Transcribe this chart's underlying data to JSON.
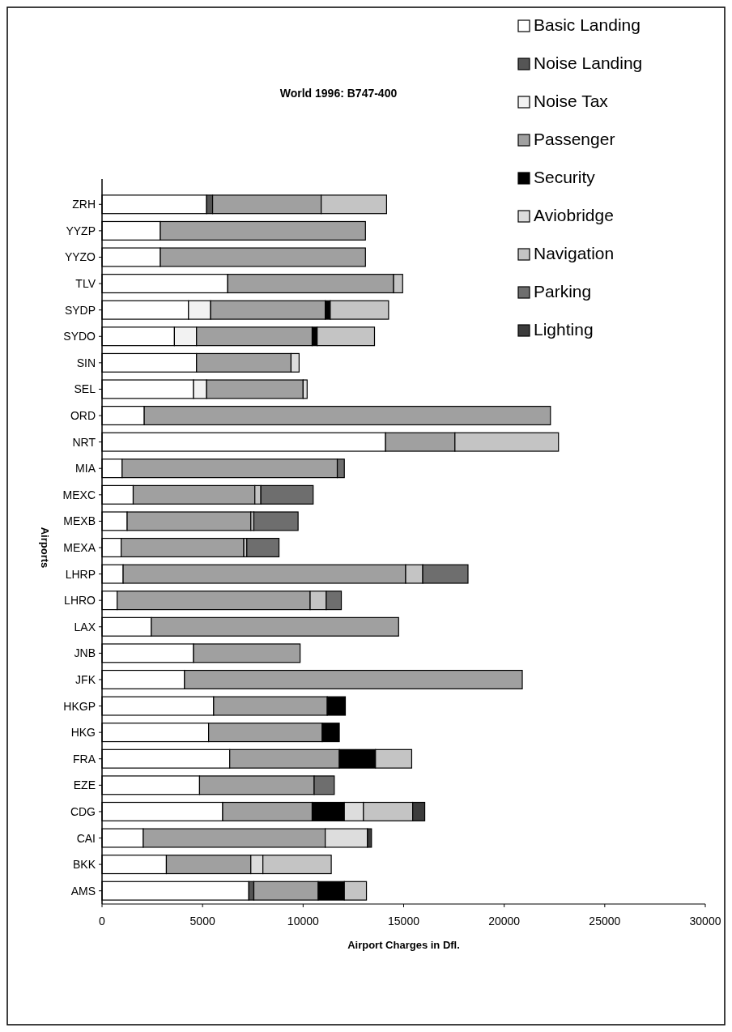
{
  "chart_data": {
    "type": "bar",
    "title": "World 1996: B747-400",
    "xlabel": "Airport Charges in Dfl.",
    "ylabel": "Airports",
    "orientation": "horizontal",
    "stacked": true,
    "legend": "top right",
    "grid": false,
    "categories": [
      "ZRH",
      "YYZP",
      "YYZO",
      "TLV",
      "SYDP",
      "SYDO",
      "SIN",
      "SEL",
      "ORD",
      "NRT",
      "MIA",
      "MEXC",
      "MEXB",
      "MEXA",
      "LHRP",
      "LHRO",
      "LAX",
      "JNB",
      "JFK",
      "HKGP",
      "HKG",
      "FRA",
      "EZE",
      "CDG",
      "CAI",
      "BKK",
      "AMS"
    ],
    "xlim": [
      0,
      30000
    ],
    "xticks": [
      0,
      5000,
      10000,
      15000,
      20000,
      25000,
      30000
    ],
    "series": [
      {
        "name": "Basic Landing",
        "color": "#ffffff",
        "values": [
          5200,
          2900,
          2900,
          6250,
          4300,
          3600,
          4700,
          4550,
          2100,
          14100,
          1000,
          1550,
          1250,
          950,
          1050,
          750,
          2450,
          4550,
          4100,
          5550,
          5300,
          6350,
          4850,
          6000,
          2050,
          3200,
          7300
        ]
      },
      {
        "name": "Noise Landing",
        "color": "#555555",
        "values": [
          300,
          null,
          null,
          null,
          null,
          null,
          null,
          null,
          null,
          null,
          null,
          null,
          null,
          null,
          null,
          null,
          null,
          null,
          null,
          null,
          null,
          null,
          null,
          null,
          null,
          null,
          250
        ]
      },
      {
        "name": "Noise Tax",
        "color": "#f2f2f2",
        "values": [
          null,
          null,
          null,
          null,
          1100,
          1100,
          null,
          650,
          null,
          null,
          null,
          null,
          null,
          null,
          null,
          null,
          null,
          null,
          null,
          null,
          null,
          null,
          null,
          null,
          null,
          null,
          null
        ]
      },
      {
        "name": "Passenger",
        "color": "#a0a0a0",
        "values": [
          5400,
          10200,
          10200,
          8250,
          5700,
          5750,
          4700,
          4800,
          20200,
          3450,
          10700,
          6050,
          6150,
          6100,
          14050,
          9600,
          12300,
          5300,
          16800,
          5650,
          5650,
          5450,
          5700,
          4450,
          9050,
          4200,
          3200
        ]
      },
      {
        "name": "Security",
        "color": "#000000",
        "values": [
          null,
          null,
          null,
          null,
          250,
          250,
          null,
          null,
          null,
          null,
          null,
          null,
          null,
          null,
          null,
          null,
          null,
          null,
          null,
          900,
          850,
          1800,
          null,
          1600,
          null,
          null,
          1300
        ]
      },
      {
        "name": "Aviobridge",
        "color": "#dddddd",
        "values": [
          null,
          null,
          null,
          null,
          null,
          null,
          400,
          200,
          null,
          null,
          null,
          null,
          null,
          null,
          null,
          null,
          null,
          null,
          null,
          null,
          null,
          null,
          null,
          950,
          2100,
          600,
          null
        ]
      },
      {
        "name": "Navigation",
        "color": "#c4c4c4",
        "values": [
          3250,
          null,
          null,
          450,
          2900,
          2850,
          null,
          null,
          null,
          5150,
          null,
          300,
          150,
          150,
          850,
          800,
          null,
          null,
          null,
          null,
          null,
          1800,
          null,
          2450,
          null,
          3400,
          1100
        ]
      },
      {
        "name": "Parking",
        "color": "#6e6e6e",
        "values": [
          null,
          null,
          null,
          null,
          null,
          null,
          null,
          null,
          null,
          null,
          350,
          2600,
          2200,
          1600,
          2250,
          750,
          null,
          null,
          null,
          null,
          null,
          null,
          1000,
          null,
          null,
          null,
          null
        ]
      },
      {
        "name": "Lighting",
        "color": "#3c3c3c",
        "values": [
          null,
          null,
          null,
          null,
          null,
          null,
          null,
          null,
          null,
          null,
          null,
          null,
          null,
          null,
          null,
          null,
          null,
          null,
          null,
          null,
          null,
          null,
          null,
          600,
          200,
          null,
          null
        ]
      }
    ]
  }
}
